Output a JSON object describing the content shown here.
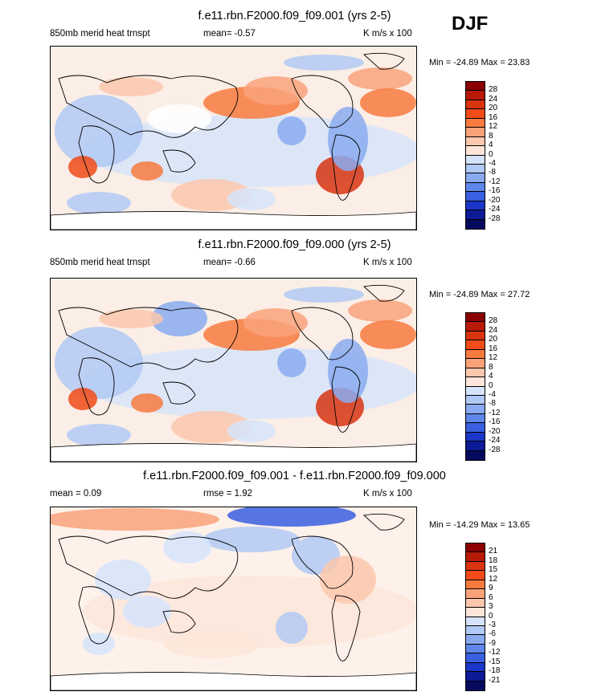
{
  "season_label": "DJF",
  "panels": [
    {
      "title": "f.e11.rbn.F2000.f09_f09.001 (yrs 2-5)",
      "left_label": "850mb merid heat trnspt",
      "stat_label": "mean=  -0.57",
      "units": "K m/s x 100",
      "minmax": "Min = -24.89 Max =  23.83",
      "levels": [
        "28",
        "24",
        "20",
        "16",
        "12",
        "8",
        "4",
        "0",
        "-4",
        "-8",
        "-12",
        "-16",
        "-20",
        "-24",
        "-28"
      ]
    },
    {
      "title": "f.e11.rbn.F2000.f09_f09.000 (yrs 2-5)",
      "left_label": "850mb merid heat trnspt",
      "stat_label": "mean=  -0.66",
      "units": "K m/s x 100",
      "minmax": "Min = -24.89 Max =  27.72",
      "levels": [
        "28",
        "24",
        "20",
        "16",
        "12",
        "8",
        "4",
        "0",
        "-4",
        "-8",
        "-12",
        "-16",
        "-20",
        "-24",
        "-28"
      ]
    },
    {
      "title": "f.e11.rbn.F2000.f09_f09.001 - f.e11.rbn.F2000.f09_f09.000",
      "left_label": "mean =   0.09",
      "stat_label": "rmse =   1.92",
      "units": "K m/s x 100",
      "minmax": "Min = -14.29 Max =  13.65",
      "levels": [
        "21",
        "18",
        "15",
        "12",
        "9",
        "6",
        "3",
        "0",
        "-3",
        "-6",
        "-9",
        "-12",
        "-15",
        "-18",
        "-21"
      ]
    }
  ],
  "colors": {
    "scale": [
      "#8b0000",
      "#b81a0a",
      "#d83410",
      "#f04b18",
      "#f77a3e",
      "#f9a27a",
      "#fbc7ad",
      "#fde6d9",
      "#ffffff",
      "#d6e4fb",
      "#b1c9f5",
      "#8aaaf0",
      "#5f86ea",
      "#3a5fe0",
      "#1a36c8",
      "#0c1a96",
      "#050a5f"
    ],
    "land_outline": "#000000"
  }
}
